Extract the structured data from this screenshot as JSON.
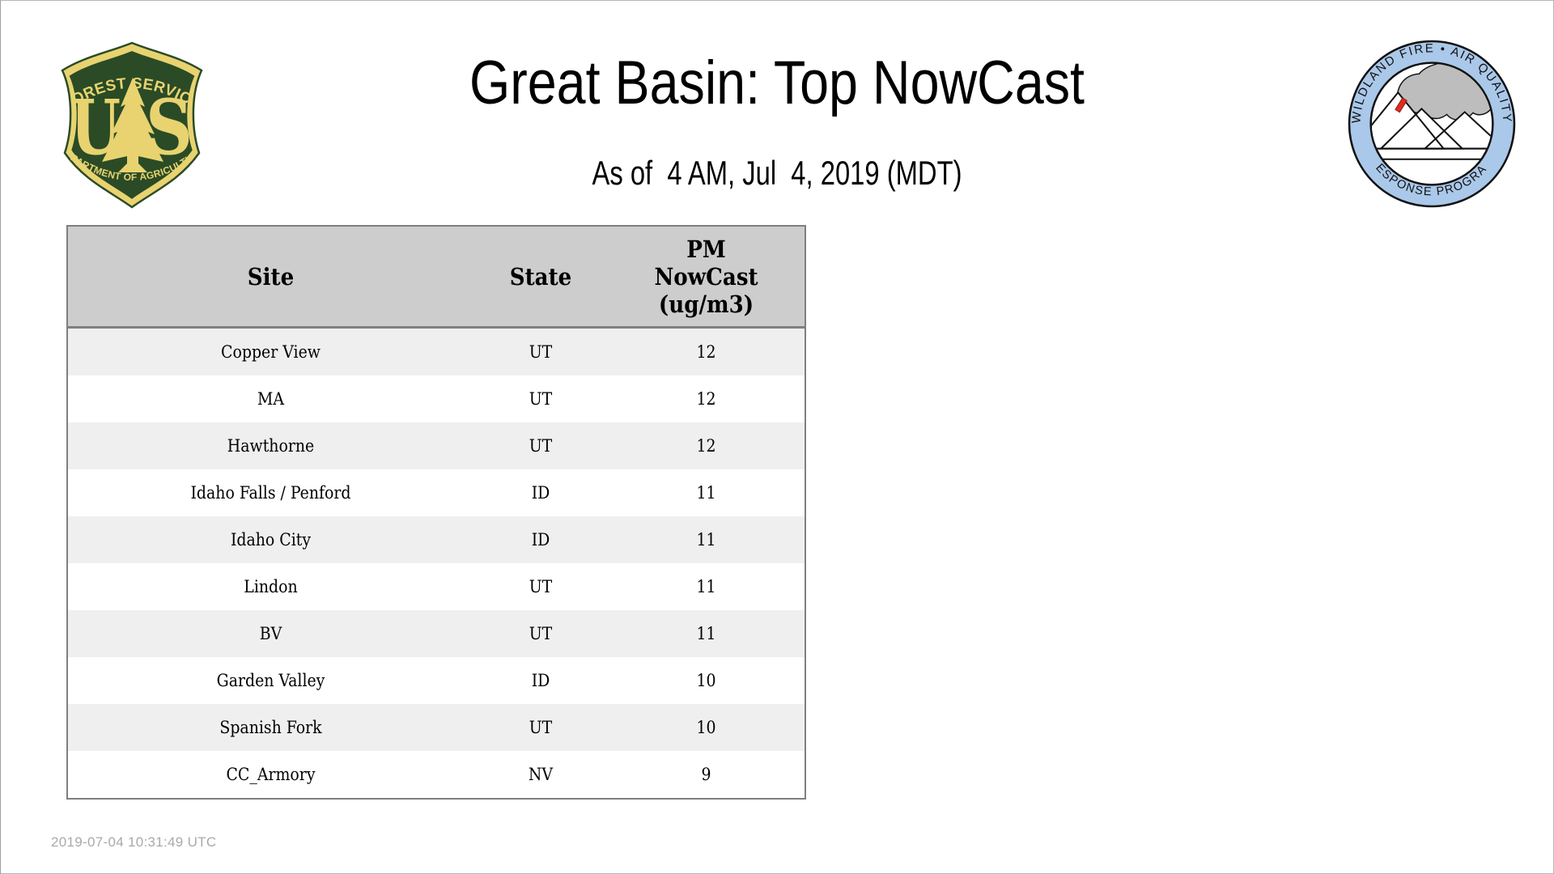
{
  "page": {
    "title": "Great Basin: Top NowCast",
    "subtitle": "As of  4 AM, Jul  4, 2019 (MDT)",
    "footer_timestamp": "2019-07-04 10:31:49 UTC",
    "background": "#ffffff"
  },
  "logos": {
    "forest_service": {
      "label": "US Forest Service shield",
      "arc_top": "FOREST SERVICE",
      "letter_left": "U",
      "letter_right": "S",
      "arc_bottom": "DEPARTMENT OF AGRICULTURE",
      "green": "#2a4b26",
      "gold": "#e8d370"
    },
    "air_quality_program": {
      "label": "Wildland Fire Air Quality Response Program badge",
      "arc_top": "WILDLAND FIRE • AIR QUALITY",
      "arc_bottom": "RESPONSE PROGRAM",
      "ring_blue": "#aac8e9",
      "smoke_gray": "#bdbdbd",
      "flame_red": "#e02b20"
    }
  },
  "table": {
    "headers": [
      "Site",
      "State",
      "PM NowCast (ug/m3)"
    ],
    "pm_header_lines": [
      "PM",
      "NowCast",
      "(ug/m3)"
    ],
    "header_bg": "#cdcdcd",
    "row_alt_bg": "#efefef",
    "border_color": "#7f7f7f",
    "rows": [
      {
        "site": "Copper View",
        "state": "UT",
        "value": "12"
      },
      {
        "site": "MA",
        "state": "UT",
        "value": "12"
      },
      {
        "site": "Hawthorne",
        "state": "UT",
        "value": "12"
      },
      {
        "site": "Idaho Falls / Penford",
        "state": "ID",
        "value": "11"
      },
      {
        "site": "Idaho City",
        "state": "ID",
        "value": "11"
      },
      {
        "site": "Lindon",
        "state": "UT",
        "value": "11"
      },
      {
        "site": "BV",
        "state": "UT",
        "value": "11"
      },
      {
        "site": "Garden Valley",
        "state": "ID",
        "value": "10"
      },
      {
        "site": "Spanish Fork",
        "state": "UT",
        "value": "10"
      },
      {
        "site": "CC_Armory",
        "state": "NV",
        "value": "9"
      }
    ]
  }
}
